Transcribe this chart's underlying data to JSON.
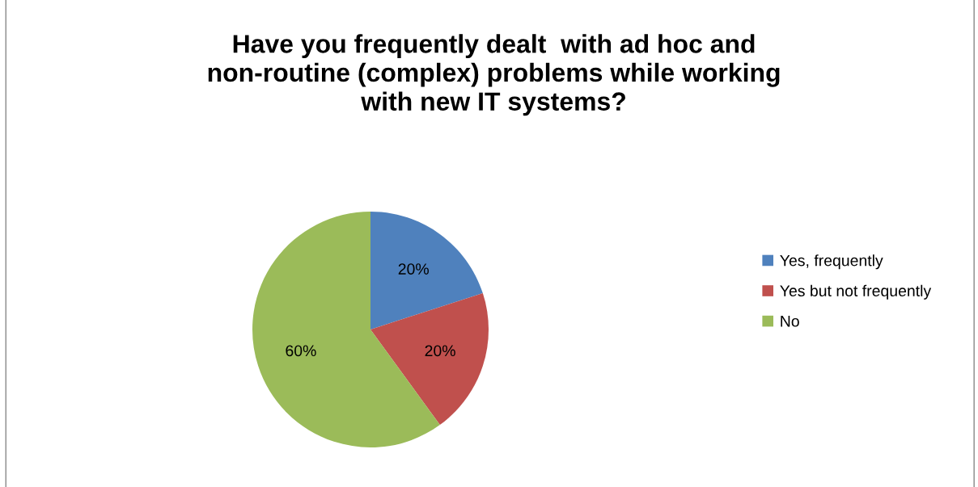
{
  "chart_data": {
    "type": "pie",
    "title": "Have you frequently dealt  with ad hoc and\nnon-routine (complex) problems while working\nwith new IT systems?",
    "categories": [
      "Yes, frequently",
      "Yes but not frequently",
      "No"
    ],
    "values": [
      20,
      20,
      60
    ],
    "colors": [
      "#4f81bd",
      "#c0504d",
      "#9bbb59"
    ],
    "value_labels": [
      "20%",
      "20%",
      "60%"
    ],
    "legend": "right"
  }
}
